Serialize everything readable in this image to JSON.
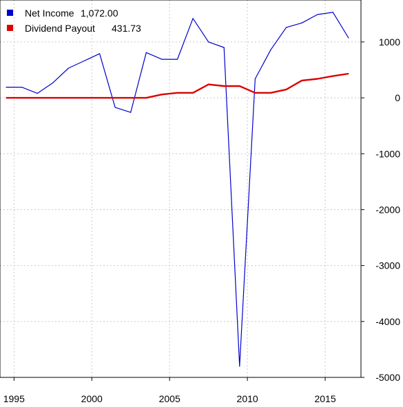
{
  "chart_data": {
    "type": "line",
    "x": [
      1994.5,
      1995.5,
      1996.5,
      1997.5,
      1998.5,
      1999.5,
      2000.5,
      2001.5,
      2002.5,
      2003.5,
      2004.5,
      2005.5,
      2006.5,
      2007.5,
      2008.5,
      2009.5,
      2010.5,
      2011.5,
      2012.5,
      2013.5,
      2014.5,
      2015.5,
      2016.5
    ],
    "series": [
      {
        "name": "Net Income",
        "legend_value": "1,072.00",
        "color": "#0000cc",
        "values": [
          190,
          190,
          80,
          270,
          530,
          660,
          790,
          -170,
          -260,
          810,
          690,
          690,
          1420,
          1000,
          900,
          -4800,
          340,
          860,
          1260,
          1340,
          1490,
          1530,
          1072
        ]
      },
      {
        "name": "Dividend Payout",
        "legend_value": "431.73",
        "color": "#dd0000",
        "values": [
          0,
          0,
          0,
          0,
          0,
          0,
          0,
          0,
          0,
          0,
          60,
          90,
          90,
          240,
          210,
          210,
          90,
          90,
          150,
          310,
          340,
          390,
          431.73
        ]
      }
    ],
    "x_ticks": [
      "1995",
      "2000",
      "2005",
      "2010",
      "2015"
    ],
    "y_ticks": [
      "1000",
      "0",
      "-1000",
      "-2000",
      "-3000",
      "-4000",
      "-5000"
    ],
    "xlim": [
      1994.1,
      2017.3
    ],
    "ylim": [
      -5000,
      1750
    ],
    "grid": true,
    "legend_position": "top-left",
    "y_axis_position": "right"
  }
}
